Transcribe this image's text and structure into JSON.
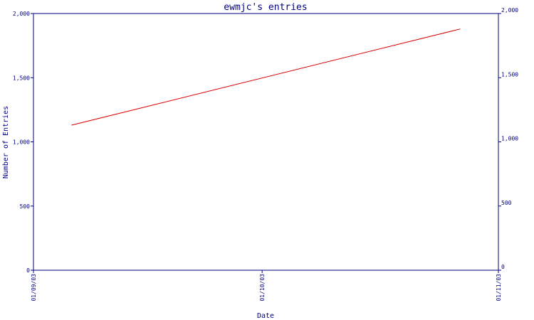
{
  "chart_data": {
    "type": "line",
    "title": "ewmjc's entries",
    "xlabel": "Date",
    "ylabel": "Number of Entries",
    "x_ticks": [
      "01/09/03",
      "01/10/03",
      "01/11/03"
    ],
    "xlim": [
      "01/09/03",
      "01/11/03"
    ],
    "y_ticks": [
      "0",
      "500",
      "1,000",
      "1,500",
      "2,000"
    ],
    "y_tick_values": [
      0,
      500,
      1000,
      1500,
      2000
    ],
    "ylim": [
      0,
      2000
    ],
    "grid": false,
    "legend": "none",
    "series": [
      {
        "color": "#dd0000",
        "x": [
          "2003-09-06",
          "2003-10-27"
        ],
        "y": [
          1130,
          1880
        ]
      }
    ],
    "colors": {
      "axis": "#000080",
      "line": "#dd0000",
      "background": "#ffffff"
    }
  }
}
